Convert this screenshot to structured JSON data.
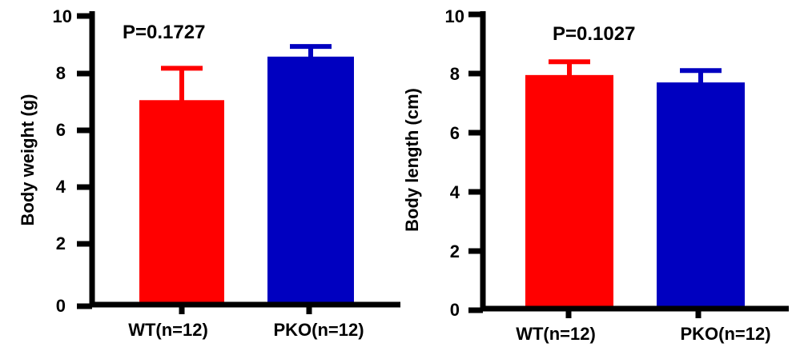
{
  "chart_data": [
    {
      "type": "bar",
      "categories": [
        "WT(n=12)",
        "PKO(n=12)"
      ],
      "values": [
        7.1,
        8.6
      ],
      "error_bars": [
        1.1,
        0.35
      ],
      "colors": [
        "#ff0000",
        "#0000c0"
      ],
      "title": "",
      "xlabel": "",
      "ylabel": "Body weight (g)",
      "ylim": [
        0,
        10
      ],
      "yticks": [
        "0",
        "2",
        "4",
        "6",
        "8",
        "10"
      ],
      "annotation": "P=0.1727",
      "grid": false
    },
    {
      "type": "bar",
      "categories": [
        "WT(n=12)",
        "PKO(n=12)"
      ],
      "values": [
        7.95,
        7.7
      ],
      "error_bars": [
        0.45,
        0.4
      ],
      "colors": [
        "#ff0000",
        "#0000c0"
      ],
      "title": "",
      "xlabel": "",
      "ylabel": "Body length (cm)",
      "ylim": [
        0,
        10
      ],
      "yticks": [
        "0",
        "2",
        "4",
        "6",
        "8",
        "10"
      ],
      "annotation": "P=0.1027",
      "grid": false
    }
  ]
}
